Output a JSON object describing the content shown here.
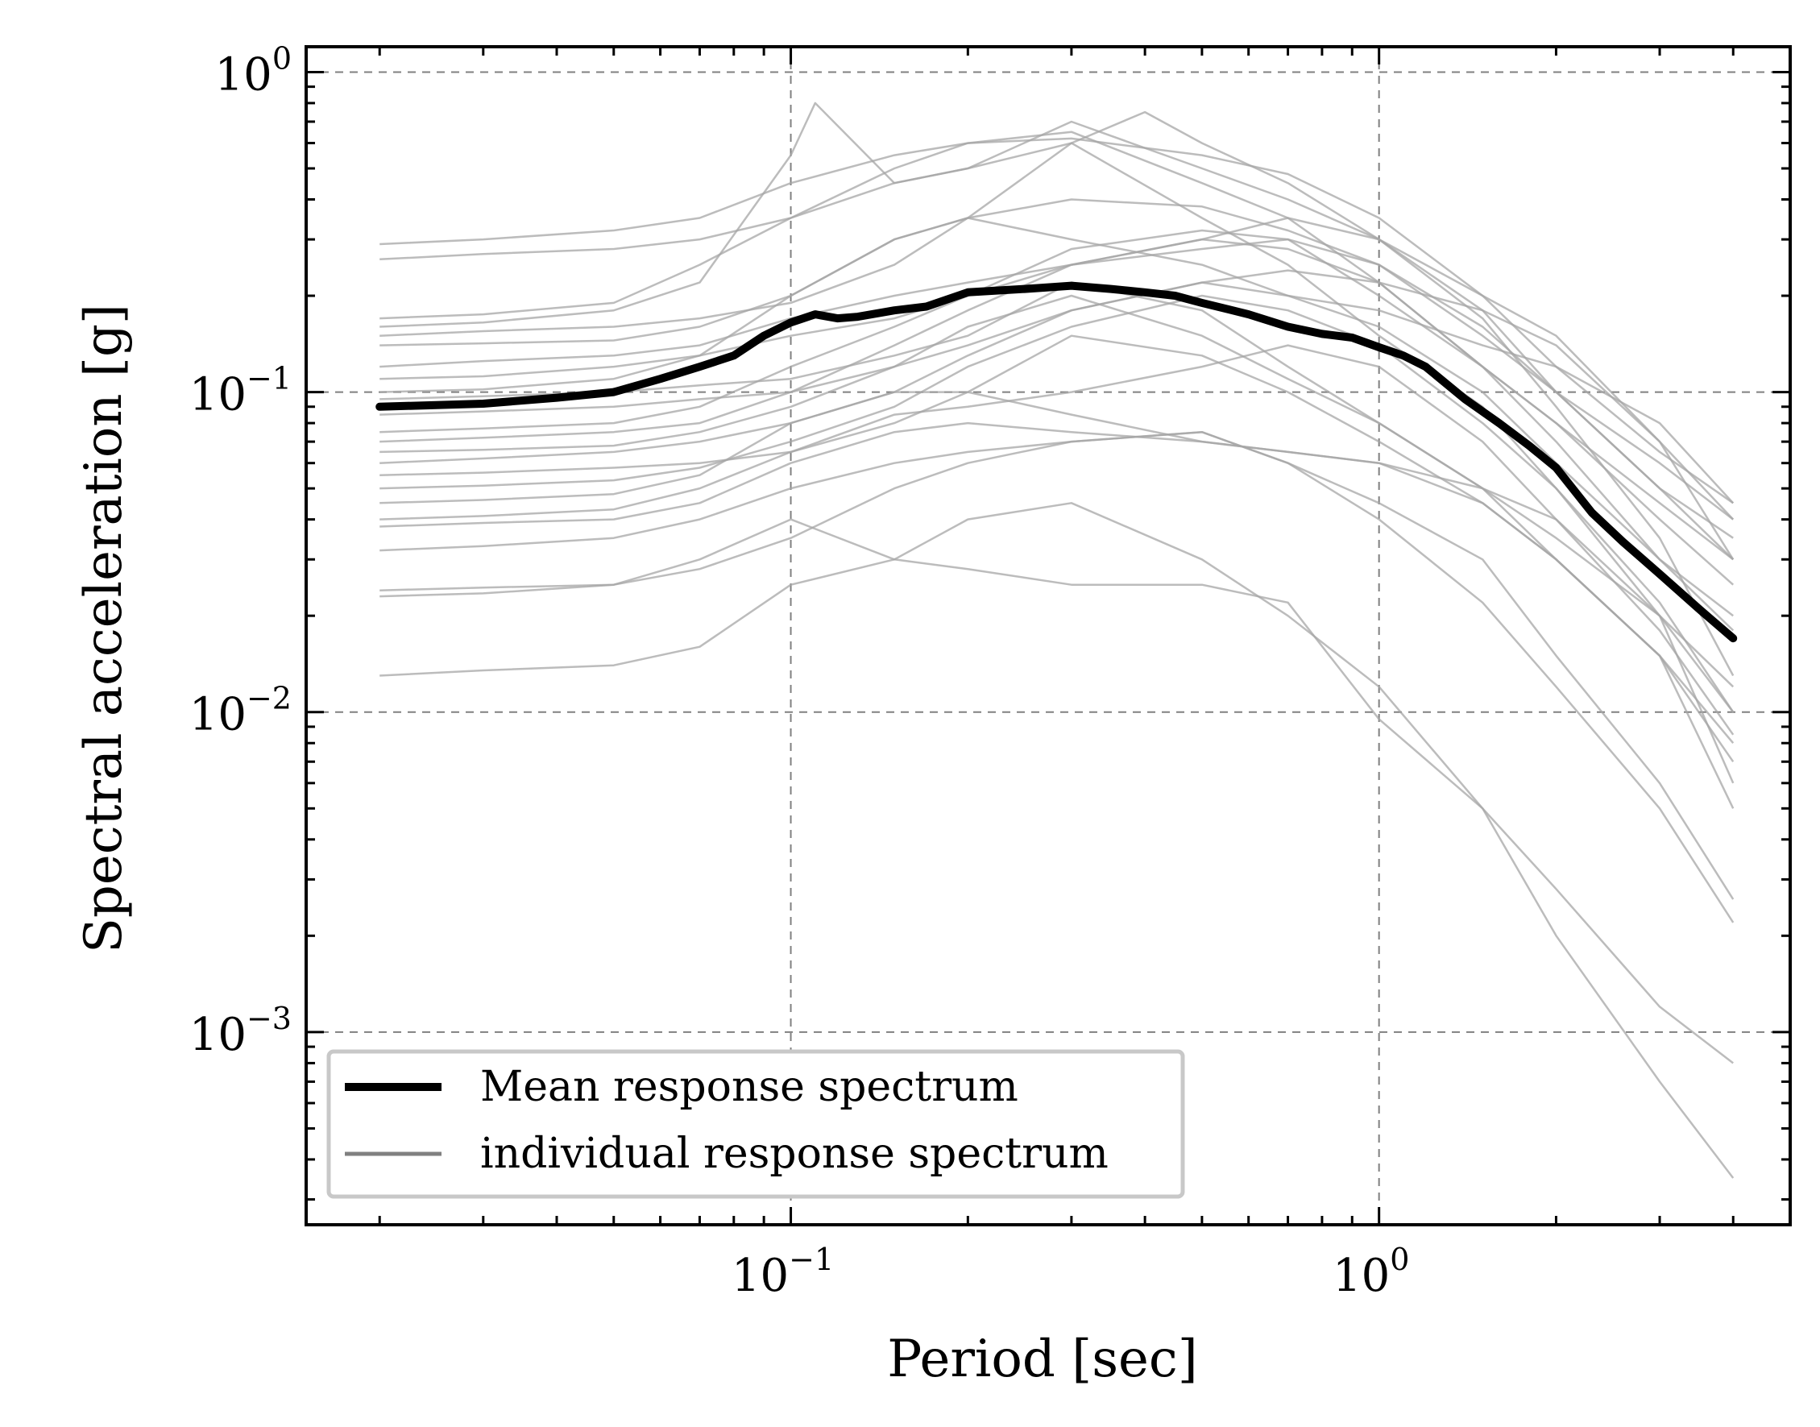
{
  "chart_data": {
    "type": "line",
    "title": "",
    "xlabel": "Period [sec]",
    "ylabel": "Spectral acceleration [g]",
    "xscale": "log",
    "yscale": "log",
    "xlim": [
      0.015,
      5.0
    ],
    "ylim": [
      0.00025,
      1.2
    ],
    "grid": true,
    "x_ticks": [
      {
        "base": "10",
        "exp": "−1",
        "value": 0.1
      },
      {
        "base": "10",
        "exp": "0",
        "value": 1.0
      }
    ],
    "y_ticks": [
      {
        "base": "10",
        "exp": "0",
        "value": 1.0
      },
      {
        "base": "10",
        "exp": "−1",
        "value": 0.1
      },
      {
        "base": "10",
        "exp": "−2",
        "value": 0.01
      },
      {
        "base": "10",
        "exp": "−3",
        "value": 0.001
      }
    ],
    "legend": {
      "placement": "bottom-left",
      "entries": [
        {
          "label": "Mean response spectrum",
          "color": "#000000"
        },
        {
          "label": "individual response spectrum",
          "color": "#808080"
        }
      ]
    },
    "colors": {
      "mean": "#000000",
      "individual": "#a6a6a6",
      "grid": "#808080"
    },
    "series": [
      {
        "name": "Mean response spectrum",
        "kind": "mean",
        "x": [
          0.02,
          0.03,
          0.04,
          0.05,
          0.06,
          0.07,
          0.08,
          0.09,
          0.1,
          0.11,
          0.12,
          0.13,
          0.15,
          0.17,
          0.2,
          0.25,
          0.3,
          0.35,
          0.4,
          0.45,
          0.5,
          0.6,
          0.7,
          0.8,
          0.9,
          1.0,
          1.1,
          1.2,
          1.4,
          1.6,
          1.8,
          2.0,
          2.3,
          2.6,
          3.0,
          3.5,
          4.0
        ],
        "y": [
          0.09,
          0.092,
          0.096,
          0.1,
          0.11,
          0.12,
          0.13,
          0.15,
          0.165,
          0.175,
          0.17,
          0.172,
          0.18,
          0.185,
          0.205,
          0.21,
          0.215,
          0.21,
          0.205,
          0.2,
          0.19,
          0.175,
          0.16,
          0.152,
          0.148,
          0.138,
          0.13,
          0.12,
          0.095,
          0.08,
          0.068,
          0.058,
          0.042,
          0.034,
          0.027,
          0.021,
          0.017
        ]
      },
      {
        "name": "individual 1",
        "kind": "individual",
        "x": [
          0.02,
          0.03,
          0.05,
          0.07,
          0.1,
          0.15,
          0.2,
          0.3,
          0.5,
          0.7,
          1.0,
          1.5,
          2.0,
          3.0,
          4.0
        ],
        "y": [
          0.29,
          0.3,
          0.32,
          0.35,
          0.45,
          0.55,
          0.6,
          0.62,
          0.55,
          0.48,
          0.35,
          0.2,
          0.12,
          0.065,
          0.045
        ]
      },
      {
        "name": "individual 2",
        "kind": "individual",
        "x": [
          0.02,
          0.03,
          0.05,
          0.07,
          0.1,
          0.15,
          0.2,
          0.3,
          0.5,
          0.7,
          1.0,
          1.5,
          2.0,
          3.0,
          4.0
        ],
        "y": [
          0.26,
          0.27,
          0.28,
          0.3,
          0.35,
          0.45,
          0.5,
          0.7,
          0.5,
          0.4,
          0.3,
          0.18,
          0.1,
          0.05,
          0.035
        ]
      },
      {
        "name": "individual 3",
        "kind": "individual",
        "x": [
          0.02,
          0.03,
          0.05,
          0.07,
          0.1,
          0.15,
          0.2,
          0.3,
          0.5,
          0.7,
          1.0,
          1.5,
          2.0,
          3.0,
          4.0
        ],
        "y": [
          0.17,
          0.175,
          0.19,
          0.25,
          0.35,
          0.5,
          0.6,
          0.65,
          0.45,
          0.35,
          0.22,
          0.12,
          0.07,
          0.03,
          0.02
        ]
      },
      {
        "name": "individual 4",
        "kind": "individual",
        "x": [
          0.02,
          0.03,
          0.05,
          0.07,
          0.1,
          0.11,
          0.15,
          0.2,
          0.3,
          0.5,
          0.7,
          1.0,
          1.5,
          2.0,
          3.0,
          4.0
        ],
        "y": [
          0.16,
          0.165,
          0.18,
          0.22,
          0.55,
          0.8,
          0.45,
          0.5,
          0.6,
          0.35,
          0.25,
          0.15,
          0.09,
          0.05,
          0.02,
          0.01
        ]
      },
      {
        "name": "individual 5",
        "kind": "individual",
        "x": [
          0.02,
          0.03,
          0.05,
          0.07,
          0.1,
          0.15,
          0.2,
          0.3,
          0.4,
          0.5,
          0.7,
          1.0,
          1.5,
          2.0,
          3.0,
          4.0
        ],
        "y": [
          0.15,
          0.155,
          0.16,
          0.17,
          0.19,
          0.25,
          0.35,
          0.6,
          0.75,
          0.6,
          0.45,
          0.3,
          0.17,
          0.09,
          0.035,
          0.013
        ]
      },
      {
        "name": "individual 6",
        "kind": "individual",
        "x": [
          0.02,
          0.03,
          0.05,
          0.07,
          0.1,
          0.15,
          0.2,
          0.3,
          0.5,
          0.7,
          1.0,
          1.5,
          2.0,
          3.0,
          4.0
        ],
        "y": [
          0.14,
          0.142,
          0.145,
          0.16,
          0.2,
          0.3,
          0.35,
          0.3,
          0.25,
          0.2,
          0.18,
          0.14,
          0.12,
          0.08,
          0.045
        ]
      },
      {
        "name": "individual 7",
        "kind": "individual",
        "x": [
          0.02,
          0.03,
          0.05,
          0.07,
          0.1,
          0.15,
          0.2,
          0.3,
          0.5,
          0.7,
          1.0,
          1.5,
          2.0,
          3.0,
          4.0
        ],
        "y": [
          0.12,
          0.125,
          0.13,
          0.14,
          0.17,
          0.2,
          0.22,
          0.25,
          0.3,
          0.35,
          0.3,
          0.2,
          0.15,
          0.07,
          0.03
        ]
      },
      {
        "name": "individual 8",
        "kind": "individual",
        "x": [
          0.02,
          0.03,
          0.05,
          0.07,
          0.1,
          0.15,
          0.2,
          0.3,
          0.5,
          0.7,
          1.0,
          1.5,
          2.0,
          3.0,
          4.0
        ],
        "y": [
          0.11,
          0.112,
          0.12,
          0.13,
          0.15,
          0.17,
          0.2,
          0.25,
          0.28,
          0.3,
          0.25,
          0.15,
          0.1,
          0.06,
          0.04
        ]
      },
      {
        "name": "individual 9",
        "kind": "individual",
        "x": [
          0.02,
          0.03,
          0.05,
          0.07,
          0.1,
          0.15,
          0.2,
          0.3,
          0.5,
          0.7,
          1.0,
          1.5,
          2.0,
          3.0,
          4.0
        ],
        "y": [
          0.095,
          0.097,
          0.1,
          0.105,
          0.11,
          0.13,
          0.15,
          0.22,
          0.18,
          0.12,
          0.08,
          0.05,
          0.035,
          0.02,
          0.012
        ]
      },
      {
        "name": "individual 10",
        "kind": "individual",
        "x": [
          0.02,
          0.03,
          0.05,
          0.07,
          0.1,
          0.15,
          0.2,
          0.3,
          0.5,
          0.7,
          1.0,
          1.5,
          2.0,
          3.0,
          4.0
        ],
        "y": [
          0.085,
          0.087,
          0.09,
          0.095,
          0.1,
          0.12,
          0.16,
          0.2,
          0.15,
          0.11,
          0.08,
          0.05,
          0.03,
          0.015,
          0.008
        ]
      },
      {
        "name": "individual 11",
        "kind": "individual",
        "x": [
          0.02,
          0.03,
          0.05,
          0.07,
          0.1,
          0.15,
          0.2,
          0.3,
          0.5,
          0.7,
          1.0,
          1.5,
          2.0,
          3.0,
          4.0
        ],
        "y": [
          0.07,
          0.072,
          0.075,
          0.08,
          0.1,
          0.14,
          0.18,
          0.25,
          0.3,
          0.28,
          0.22,
          0.12,
          0.08,
          0.04,
          0.025
        ]
      },
      {
        "name": "individual 12",
        "kind": "individual",
        "x": [
          0.02,
          0.03,
          0.05,
          0.07,
          0.1,
          0.15,
          0.2,
          0.3,
          0.5,
          0.7,
          1.0,
          1.5,
          2.0,
          3.0,
          4.0
        ],
        "y": [
          0.06,
          0.062,
          0.065,
          0.07,
          0.08,
          0.1,
          0.13,
          0.18,
          0.22,
          0.2,
          0.16,
          0.1,
          0.06,
          0.03,
          0.018
        ]
      },
      {
        "name": "individual 13",
        "kind": "individual",
        "x": [
          0.02,
          0.03,
          0.05,
          0.07,
          0.1,
          0.15,
          0.2,
          0.3,
          0.5,
          0.7,
          1.0,
          1.5,
          2.0,
          3.0,
          4.0
        ],
        "y": [
          0.055,
          0.056,
          0.058,
          0.06,
          0.065,
          0.08,
          0.1,
          0.15,
          0.13,
          0.1,
          0.07,
          0.045,
          0.03,
          0.015,
          0.007
        ]
      },
      {
        "name": "individual 14",
        "kind": "individual",
        "x": [
          0.02,
          0.03,
          0.05,
          0.07,
          0.1,
          0.15,
          0.2,
          0.3,
          0.5,
          0.7,
          1.0,
          1.5,
          2.0,
          3.0,
          4.0
        ],
        "y": [
          0.05,
          0.051,
          0.053,
          0.058,
          0.07,
          0.09,
          0.12,
          0.16,
          0.2,
          0.18,
          0.14,
          0.08,
          0.05,
          0.022,
          0.01
        ]
      },
      {
        "name": "individual 15",
        "kind": "individual",
        "x": [
          0.02,
          0.03,
          0.05,
          0.07,
          0.1,
          0.15,
          0.2,
          0.3,
          0.5,
          0.7,
          1.0,
          1.5,
          2.0,
          3.0,
          4.0
        ],
        "y": [
          0.045,
          0.046,
          0.048,
          0.055,
          0.08,
          0.1,
          0.1,
          0.085,
          0.07,
          0.065,
          0.06,
          0.05,
          0.04,
          0.02,
          0.006
        ]
      },
      {
        "name": "individual 16",
        "kind": "individual",
        "x": [
          0.02,
          0.03,
          0.05,
          0.07,
          0.1,
          0.15,
          0.2,
          0.3,
          0.5,
          0.7,
          1.0,
          1.5,
          2.0,
          3.0,
          4.0
        ],
        "y": [
          0.04,
          0.041,
          0.043,
          0.05,
          0.065,
          0.085,
          0.09,
          0.1,
          0.12,
          0.14,
          0.12,
          0.07,
          0.04,
          0.018,
          0.0085
        ]
      },
      {
        "name": "individual 17",
        "kind": "individual",
        "x": [
          0.02,
          0.03,
          0.05,
          0.07,
          0.1,
          0.15,
          0.2,
          0.3,
          0.5,
          0.7,
          1.0,
          1.5,
          2.0,
          3.0,
          4.0
        ],
        "y": [
          0.038,
          0.039,
          0.04,
          0.045,
          0.06,
          0.075,
          0.08,
          0.075,
          0.07,
          0.065,
          0.06,
          0.045,
          0.03,
          0.015,
          0.005
        ]
      },
      {
        "name": "individual 18",
        "kind": "individual",
        "x": [
          0.02,
          0.03,
          0.05,
          0.07,
          0.1,
          0.15,
          0.2,
          0.3,
          0.5,
          0.7,
          1.0,
          1.5,
          2.0,
          3.0,
          4.0
        ],
        "y": [
          0.032,
          0.033,
          0.035,
          0.04,
          0.05,
          0.06,
          0.065,
          0.07,
          0.075,
          0.06,
          0.045,
          0.03,
          0.015,
          0.006,
          0.0026
        ]
      },
      {
        "name": "individual 19",
        "kind": "individual",
        "x": [
          0.02,
          0.03,
          0.05,
          0.07,
          0.1,
          0.15,
          0.2,
          0.3,
          0.5,
          0.7,
          1.0,
          1.5,
          2.0,
          3.0,
          4.0
        ],
        "y": [
          0.024,
          0.0245,
          0.025,
          0.028,
          0.035,
          0.05,
          0.06,
          0.07,
          0.075,
          0.06,
          0.04,
          0.022,
          0.012,
          0.005,
          0.0022
        ]
      },
      {
        "name": "individual 20",
        "kind": "individual",
        "x": [
          0.02,
          0.03,
          0.05,
          0.07,
          0.1,
          0.15,
          0.2,
          0.3,
          0.5,
          0.7,
          1.0,
          1.5,
          2.0,
          3.0,
          4.0
        ],
        "y": [
          0.023,
          0.0235,
          0.025,
          0.03,
          0.04,
          0.03,
          0.028,
          0.025,
          0.025,
          0.022,
          0.0095,
          0.005,
          0.0028,
          0.0012,
          0.0008
        ]
      },
      {
        "name": "individual 21",
        "kind": "individual",
        "x": [
          0.02,
          0.03,
          0.05,
          0.07,
          0.1,
          0.15,
          0.2,
          0.3,
          0.5,
          0.7,
          1.0,
          1.5,
          2.0,
          3.0,
          4.0
        ],
        "y": [
          0.013,
          0.0135,
          0.014,
          0.016,
          0.025,
          0.03,
          0.04,
          0.045,
          0.03,
          0.02,
          0.012,
          0.005,
          0.002,
          0.0007,
          0.00035
        ]
      },
      {
        "name": "individual 22",
        "kind": "individual",
        "x": [
          0.02,
          0.03,
          0.05,
          0.07,
          0.1,
          0.15,
          0.2,
          0.3,
          0.5,
          0.7,
          1.0,
          1.5,
          2.0,
          3.0,
          4.0
        ],
        "y": [
          0.1,
          0.102,
          0.11,
          0.13,
          0.2,
          0.3,
          0.35,
          0.4,
          0.38,
          0.32,
          0.25,
          0.16,
          0.1,
          0.05,
          0.03
        ]
      },
      {
        "name": "individual 23",
        "kind": "individual",
        "x": [
          0.02,
          0.03,
          0.05,
          0.07,
          0.1,
          0.15,
          0.2,
          0.3,
          0.5,
          0.7,
          1.0,
          1.5,
          2.0,
          3.0,
          4.0
        ],
        "y": [
          0.075,
          0.077,
          0.08,
          0.09,
          0.12,
          0.16,
          0.2,
          0.28,
          0.32,
          0.3,
          0.2,
          0.12,
          0.08,
          0.045,
          0.03
        ]
      },
      {
        "name": "individual 24",
        "kind": "individual",
        "x": [
          0.02,
          0.03,
          0.05,
          0.07,
          0.1,
          0.15,
          0.2,
          0.3,
          0.5,
          0.7,
          1.0,
          1.5,
          2.0,
          3.0,
          4.0
        ],
        "y": [
          0.065,
          0.066,
          0.068,
          0.075,
          0.09,
          0.12,
          0.14,
          0.18,
          0.22,
          0.24,
          0.22,
          0.18,
          0.14,
          0.07,
          0.04
        ]
      }
    ]
  }
}
